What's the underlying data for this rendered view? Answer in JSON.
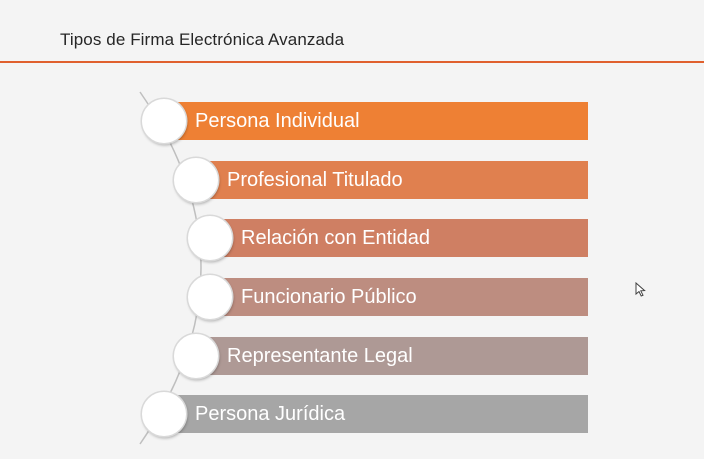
{
  "slide": {
    "title": "Tipos de Firma Electrónica Avanzada"
  },
  "list": {
    "items": [
      {
        "label": "Persona Individual",
        "color": "#ee8034"
      },
      {
        "label": "Profesional Titulado",
        "color": "#e0804f"
      },
      {
        "label": "Relación con Entidad",
        "color": "#cf7f63"
      },
      {
        "label": "Funcionario Público",
        "color": "#bd8d80"
      },
      {
        "label": "Representante Legal",
        "color": "#ae9995"
      },
      {
        "label": "Persona Jurídica",
        "color": "#a6a6a6"
      }
    ]
  },
  "colors": {
    "accent_rule": "#e0602e"
  },
  "cursor": {
    "icon": "mouse-pointer-icon"
  }
}
